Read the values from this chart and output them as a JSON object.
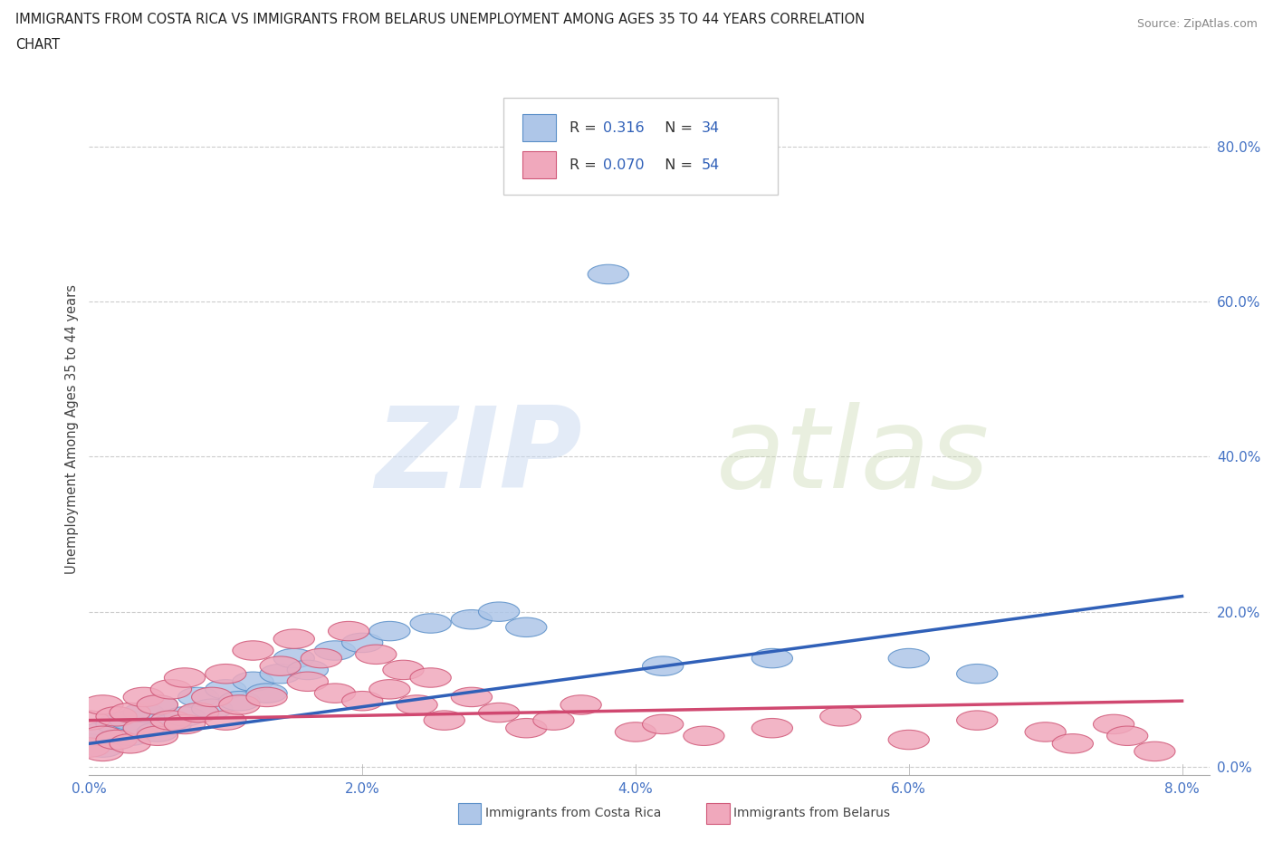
{
  "title_line1": "IMMIGRANTS FROM COSTA RICA VS IMMIGRANTS FROM BELARUS UNEMPLOYMENT AMONG AGES 35 TO 44 YEARS CORRELATION",
  "title_line2": "CHART",
  "source_text": "Source: ZipAtlas.com",
  "ylabel": "Unemployment Among Ages 35 to 44 years",
  "xlim": [
    0.0,
    0.082
  ],
  "ylim": [
    -0.01,
    0.88
  ],
  "xticks": [
    0.0,
    0.02,
    0.04,
    0.06,
    0.08
  ],
  "yticks": [
    0.0,
    0.2,
    0.4,
    0.6,
    0.8
  ],
  "color_cr_fill": "#aec6e8",
  "color_cr_edge": "#5a8fc8",
  "color_bl_fill": "#f0a8bc",
  "color_bl_edge": "#d05878",
  "color_line_cr": "#3060b8",
  "color_line_bl": "#d04870",
  "bottom_legend_cr": "Immigrants from Costa Rica",
  "bottom_legend_bl": "Immigrants from Belarus",
  "cr_x": [
    0.0,
    0.001,
    0.001,
    0.002,
    0.002,
    0.003,
    0.003,
    0.004,
    0.004,
    0.005,
    0.005,
    0.006,
    0.007,
    0.008,
    0.009,
    0.01,
    0.011,
    0.012,
    0.013,
    0.014,
    0.015,
    0.016,
    0.018,
    0.02,
    0.022,
    0.025,
    0.028,
    0.03,
    0.032,
    0.038,
    0.042,
    0.05,
    0.06,
    0.065
  ],
  "cr_y": [
    0.03,
    0.025,
    0.045,
    0.035,
    0.055,
    0.04,
    0.06,
    0.05,
    0.07,
    0.045,
    0.08,
    0.055,
    0.065,
    0.09,
    0.075,
    0.1,
    0.085,
    0.11,
    0.095,
    0.12,
    0.14,
    0.125,
    0.15,
    0.16,
    0.175,
    0.185,
    0.19,
    0.2,
    0.18,
    0.635,
    0.13,
    0.14,
    0.14,
    0.12
  ],
  "bl_x": [
    0.0,
    0.0,
    0.001,
    0.001,
    0.001,
    0.002,
    0.002,
    0.003,
    0.003,
    0.004,
    0.004,
    0.005,
    0.005,
    0.006,
    0.006,
    0.007,
    0.007,
    0.008,
    0.009,
    0.01,
    0.01,
    0.011,
    0.012,
    0.013,
    0.014,
    0.015,
    0.016,
    0.017,
    0.018,
    0.019,
    0.02,
    0.021,
    0.022,
    0.023,
    0.024,
    0.025,
    0.026,
    0.028,
    0.03,
    0.032,
    0.034,
    0.036,
    0.04,
    0.042,
    0.045,
    0.05,
    0.055,
    0.06,
    0.065,
    0.07,
    0.072,
    0.075,
    0.076,
    0.078
  ],
  "bl_y": [
    0.025,
    0.06,
    0.04,
    0.02,
    0.08,
    0.035,
    0.065,
    0.03,
    0.07,
    0.05,
    0.09,
    0.04,
    0.08,
    0.06,
    0.1,
    0.055,
    0.115,
    0.07,
    0.09,
    0.06,
    0.12,
    0.08,
    0.15,
    0.09,
    0.13,
    0.165,
    0.11,
    0.14,
    0.095,
    0.175,
    0.085,
    0.145,
    0.1,
    0.125,
    0.08,
    0.115,
    0.06,
    0.09,
    0.07,
    0.05,
    0.06,
    0.08,
    0.045,
    0.055,
    0.04,
    0.05,
    0.065,
    0.035,
    0.06,
    0.045,
    0.03,
    0.055,
    0.04,
    0.02
  ],
  "cr_trend_x": [
    0.0,
    0.08
  ],
  "cr_trend_y": [
    0.03,
    0.22
  ],
  "bl_trend_x": [
    0.0,
    0.08
  ],
  "bl_trend_y": [
    0.06,
    0.085
  ]
}
